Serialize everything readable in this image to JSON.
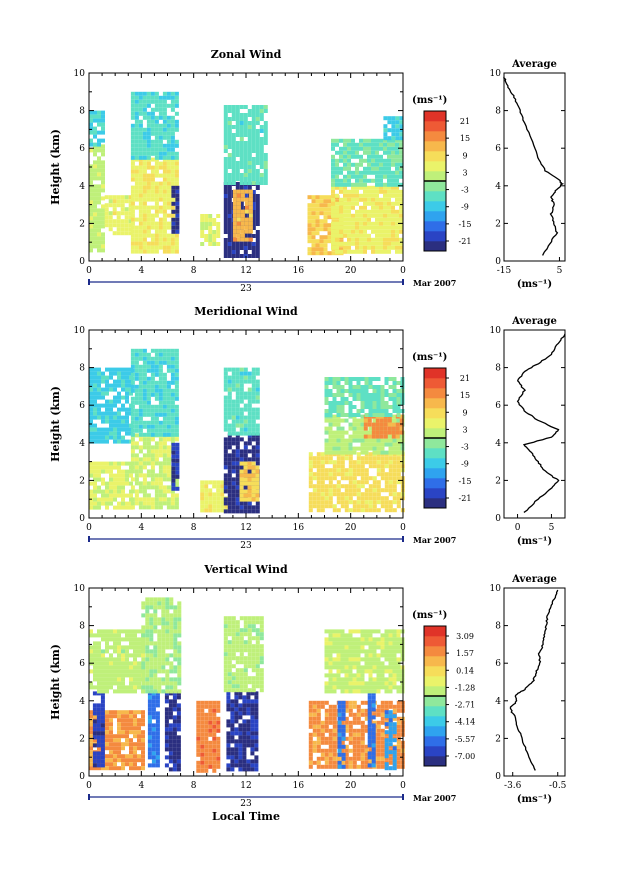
{
  "chart_data": [
    {
      "type": "heatmap",
      "title": "Zonal Wind",
      "ylabel": "Height (km)",
      "xlabel": "",
      "xlim": [
        0,
        24
      ],
      "ylim": [
        0,
        10
      ],
      "x_ticks": [
        "0",
        "4",
        "8",
        "12",
        "16",
        "20",
        "0"
      ],
      "y_ticks": [
        "0",
        "2",
        "4",
        "6",
        "8",
        "10"
      ],
      "date_label": "23",
      "month_label": "Mar 2007",
      "colorbar": {
        "unit": "(ms⁻¹)",
        "ticks": [
          "21",
          "15",
          "9",
          "3",
          "-3",
          "-9",
          "-15",
          "-21"
        ],
        "range": [
          -24,
          24
        ]
      },
      "data_blocks": [
        {
          "t0": 0,
          "t1": 1.2,
          "h0": 0.5,
          "h1": 6.2,
          "v": 2
        },
        {
          "t0": 0,
          "t1": 1.2,
          "h0": 6.2,
          "h1": 8,
          "v": -7
        },
        {
          "t0": 1.2,
          "t1": 3.2,
          "h0": 1.5,
          "h1": 3.5,
          "v": 5
        },
        {
          "t0": 3.2,
          "t1": 6.8,
          "h0": 0.5,
          "h1": 5.5,
          "v": 6
        },
        {
          "t0": 3.2,
          "t1": 6.8,
          "h0": 5.5,
          "h1": 9,
          "v": -6
        },
        {
          "t0": 6.3,
          "t1": 6.8,
          "h0": 1.5,
          "h1": 4,
          "v": -21
        },
        {
          "t0": 8.5,
          "t1": 10,
          "h0": 1,
          "h1": 2.5,
          "v": 4
        },
        {
          "t0": 10.3,
          "t1": 13.0,
          "h0": 0.3,
          "h1": 4.2,
          "v": -22
        },
        {
          "t0": 11,
          "t1": 12.5,
          "h0": 1.2,
          "h1": 3.8,
          "v": 12
        },
        {
          "t0": 10.3,
          "t1": 13.5,
          "h0": 4.2,
          "h1": 8.3,
          "v": -5
        },
        {
          "t0": 16.7,
          "t1": 19.2,
          "h0": 0.5,
          "h1": 3.5,
          "v": 10
        },
        {
          "t0": 18.5,
          "t1": 24,
          "h0": 0.5,
          "h1": 4,
          "v": 6
        },
        {
          "t0": 18.5,
          "t1": 24,
          "h0": 4,
          "h1": 6.5,
          "v": -4
        },
        {
          "t0": 22.5,
          "t1": 24,
          "h0": 6.5,
          "h1": 7.7,
          "v": -8
        }
      ],
      "profile": {
        "title": "Average",
        "xlabel": "(ms⁻¹)",
        "x_ticks": [
          "-15",
          "5"
        ],
        "xlim": [
          -15,
          7
        ],
        "y_ticks": [
          "0",
          "2",
          "4",
          "6",
          "8",
          "10"
        ],
        "heights": [
          0.3,
          0.8,
          1.5,
          2.0,
          2.5,
          3.0,
          3.4,
          3.8,
          4.1,
          4.3,
          4.8,
          5.5,
          6.5,
          7.5,
          8.3,
          8.9,
          9.4,
          9.8
        ],
        "values": [
          -1,
          1,
          4,
          3,
          2,
          3,
          2,
          4,
          6,
          5,
          0,
          -3,
          -5,
          -8,
          -10,
          -12,
          -14,
          -15
        ]
      }
    },
    {
      "type": "heatmap",
      "title": "Meridional Wind",
      "ylabel": "Height (km)",
      "xlabel": "",
      "xlim": [
        0,
        24
      ],
      "ylim": [
        0,
        10
      ],
      "x_ticks": [
        "0",
        "4",
        "8",
        "12",
        "16",
        "20",
        "0"
      ],
      "y_ticks": [
        "0",
        "2",
        "4",
        "6",
        "8",
        "10"
      ],
      "date_label": "23",
      "month_label": "Mar 2007",
      "colorbar": {
        "unit": "(ms⁻¹)",
        "ticks": [
          "21",
          "15",
          "9",
          "3",
          "-3",
          "-9",
          "-15",
          "-21"
        ],
        "range": [
          -24,
          24
        ]
      },
      "data_blocks": [
        {
          "t0": 0,
          "t1": 3.2,
          "h0": 0.5,
          "h1": 3,
          "v": 4
        },
        {
          "t0": 0,
          "t1": 3.2,
          "h0": 4,
          "h1": 8,
          "v": -8
        },
        {
          "t0": 3.2,
          "t1": 6.8,
          "h0": 0.5,
          "h1": 4.5,
          "v": 3
        },
        {
          "t0": 3.2,
          "t1": 6.8,
          "h0": 4.5,
          "h1": 9,
          "v": -6
        },
        {
          "t0": 6.3,
          "t1": 6.8,
          "h0": 1.5,
          "h1": 4,
          "v": -20
        },
        {
          "t0": 8.5,
          "t1": 10.5,
          "h0": 0.5,
          "h1": 2,
          "v": 6
        },
        {
          "t0": 10.3,
          "t1": 13,
          "h0": 0.3,
          "h1": 4.5,
          "v": -22
        },
        {
          "t0": 11.5,
          "t1": 13,
          "h0": 1,
          "h1": 3,
          "v": 10
        },
        {
          "t0": 10.3,
          "t1": 13,
          "h0": 4.5,
          "h1": 8,
          "v": -5
        },
        {
          "t0": 16.8,
          "t1": 24,
          "h0": 0.5,
          "h1": 3.5,
          "v": 8
        },
        {
          "t0": 18,
          "t1": 24,
          "h0": 3.5,
          "h1": 5.5,
          "v": 1
        },
        {
          "t0": 21,
          "t1": 24,
          "h0": 4.3,
          "h1": 5.5,
          "v": 15
        },
        {
          "t0": 18,
          "t1": 24,
          "h0": 5.5,
          "h1": 7.5,
          "v": -4
        }
      ],
      "profile": {
        "title": "Average",
        "xlabel": "(ms⁻¹)",
        "x_ticks": [
          "0",
          "5"
        ],
        "xlim": [
          -2,
          7
        ],
        "y_ticks": [
          "0",
          "2",
          "4",
          "6",
          "8",
          "10"
        ],
        "heights": [
          0.3,
          1.0,
          1.6,
          2.0,
          2.5,
          3.0,
          3.5,
          3.9,
          4.3,
          4.7,
          5.2,
          5.7,
          6.2,
          6.8,
          7.3,
          7.8,
          8.2,
          8.7,
          9.3,
          9.8
        ],
        "values": [
          1,
          3,
          5,
          6,
          4,
          3,
          2,
          1,
          5,
          6,
          3,
          1,
          0,
          1,
          0,
          1,
          3,
          5,
          6,
          7
        ]
      }
    },
    {
      "type": "heatmap",
      "title": "Vertical Wind",
      "ylabel": "Height (km)",
      "xlabel": "Local Time",
      "xlim": [
        0,
        24
      ],
      "ylim": [
        0,
        10
      ],
      "x_ticks": [
        "0",
        "4",
        "8",
        "12",
        "16",
        "20",
        "0"
      ],
      "y_ticks": [
        "0",
        "2",
        "4",
        "6",
        "8",
        "10"
      ],
      "date_label": "23",
      "month_label": "Mar 2007",
      "colorbar": {
        "unit": "(ms⁻¹)",
        "ticks": [
          "3.09",
          "1.57",
          "0.14",
          "-1.28",
          "-2.71",
          "-4.14",
          "-5.57",
          "-7.00"
        ],
        "range": [
          -7.7,
          3.8
        ]
      },
      "data_blocks": [
        {
          "t0": 0,
          "t1": 4,
          "h0": 0.5,
          "h1": 3.5,
          "v": 1.5
        },
        {
          "t0": 0.3,
          "t1": 1.2,
          "h0": 0.5,
          "h1": 4.5,
          "v": -6.5
        },
        {
          "t0": 0,
          "t1": 4,
          "h0": 4.5,
          "h1": 7.8,
          "v": -1.5
        },
        {
          "t0": 4.5,
          "t1": 5.2,
          "h0": 0.5,
          "h1": 4.5,
          "v": -5.5
        },
        {
          "t0": 5.8,
          "t1": 6.8,
          "h0": 0.3,
          "h1": 4.5,
          "v": -7.0
        },
        {
          "t0": 4,
          "t1": 7,
          "h0": 4.5,
          "h1": 9.5,
          "v": -1.8
        },
        {
          "t0": 8.2,
          "t1": 10,
          "h0": 0.3,
          "h1": 4,
          "v": 1.8
        },
        {
          "t0": 10.5,
          "t1": 12.8,
          "h0": 0.3,
          "h1": 4.5,
          "v": -7.0
        },
        {
          "t0": 10.3,
          "t1": 13.2,
          "h0": 4.5,
          "h1": 8.5,
          "v": -1.6
        },
        {
          "t0": 16.8,
          "t1": 24,
          "h0": 0.5,
          "h1": 4,
          "v": 1.6
        },
        {
          "t0": 19,
          "t1": 19.6,
          "h0": 0.5,
          "h1": 4,
          "v": -5.5
        },
        {
          "t0": 21.3,
          "t1": 21.9,
          "h0": 0.5,
          "h1": 4.5,
          "v": -5.5
        },
        {
          "t0": 22.6,
          "t1": 23.3,
          "h0": 0.5,
          "h1": 3.5,
          "v": -5.0
        },
        {
          "t0": 18,
          "t1": 24,
          "h0": 4.5,
          "h1": 7.8,
          "v": -1.4
        }
      ],
      "profile": {
        "title": "Average",
        "xlabel": "(ms⁻¹)",
        "x_ticks": [
          "-3.6",
          "-0.5"
        ],
        "xlim": [
          -4.2,
          0
        ],
        "y_ticks": [
          "0",
          "2",
          "4",
          "6",
          "8",
          "10"
        ],
        "heights": [
          0.3,
          1.0,
          1.8,
          2.5,
          3.2,
          3.6,
          4.0,
          4.3,
          4.6,
          5.0,
          5.5,
          6.0,
          6.5,
          7.0,
          7.5,
          8.0,
          8.5,
          9.0,
          9.5,
          9.9
        ],
        "values": [
          -2.0,
          -2.5,
          -2.9,
          -3.2,
          -3.5,
          -3.8,
          -3.3,
          -3.4,
          -2.8,
          -2.2,
          -2.0,
          -1.7,
          -1.8,
          -1.5,
          -1.4,
          -1.3,
          -1.2,
          -1.0,
          -0.7,
          -0.5
        ]
      }
    }
  ]
}
